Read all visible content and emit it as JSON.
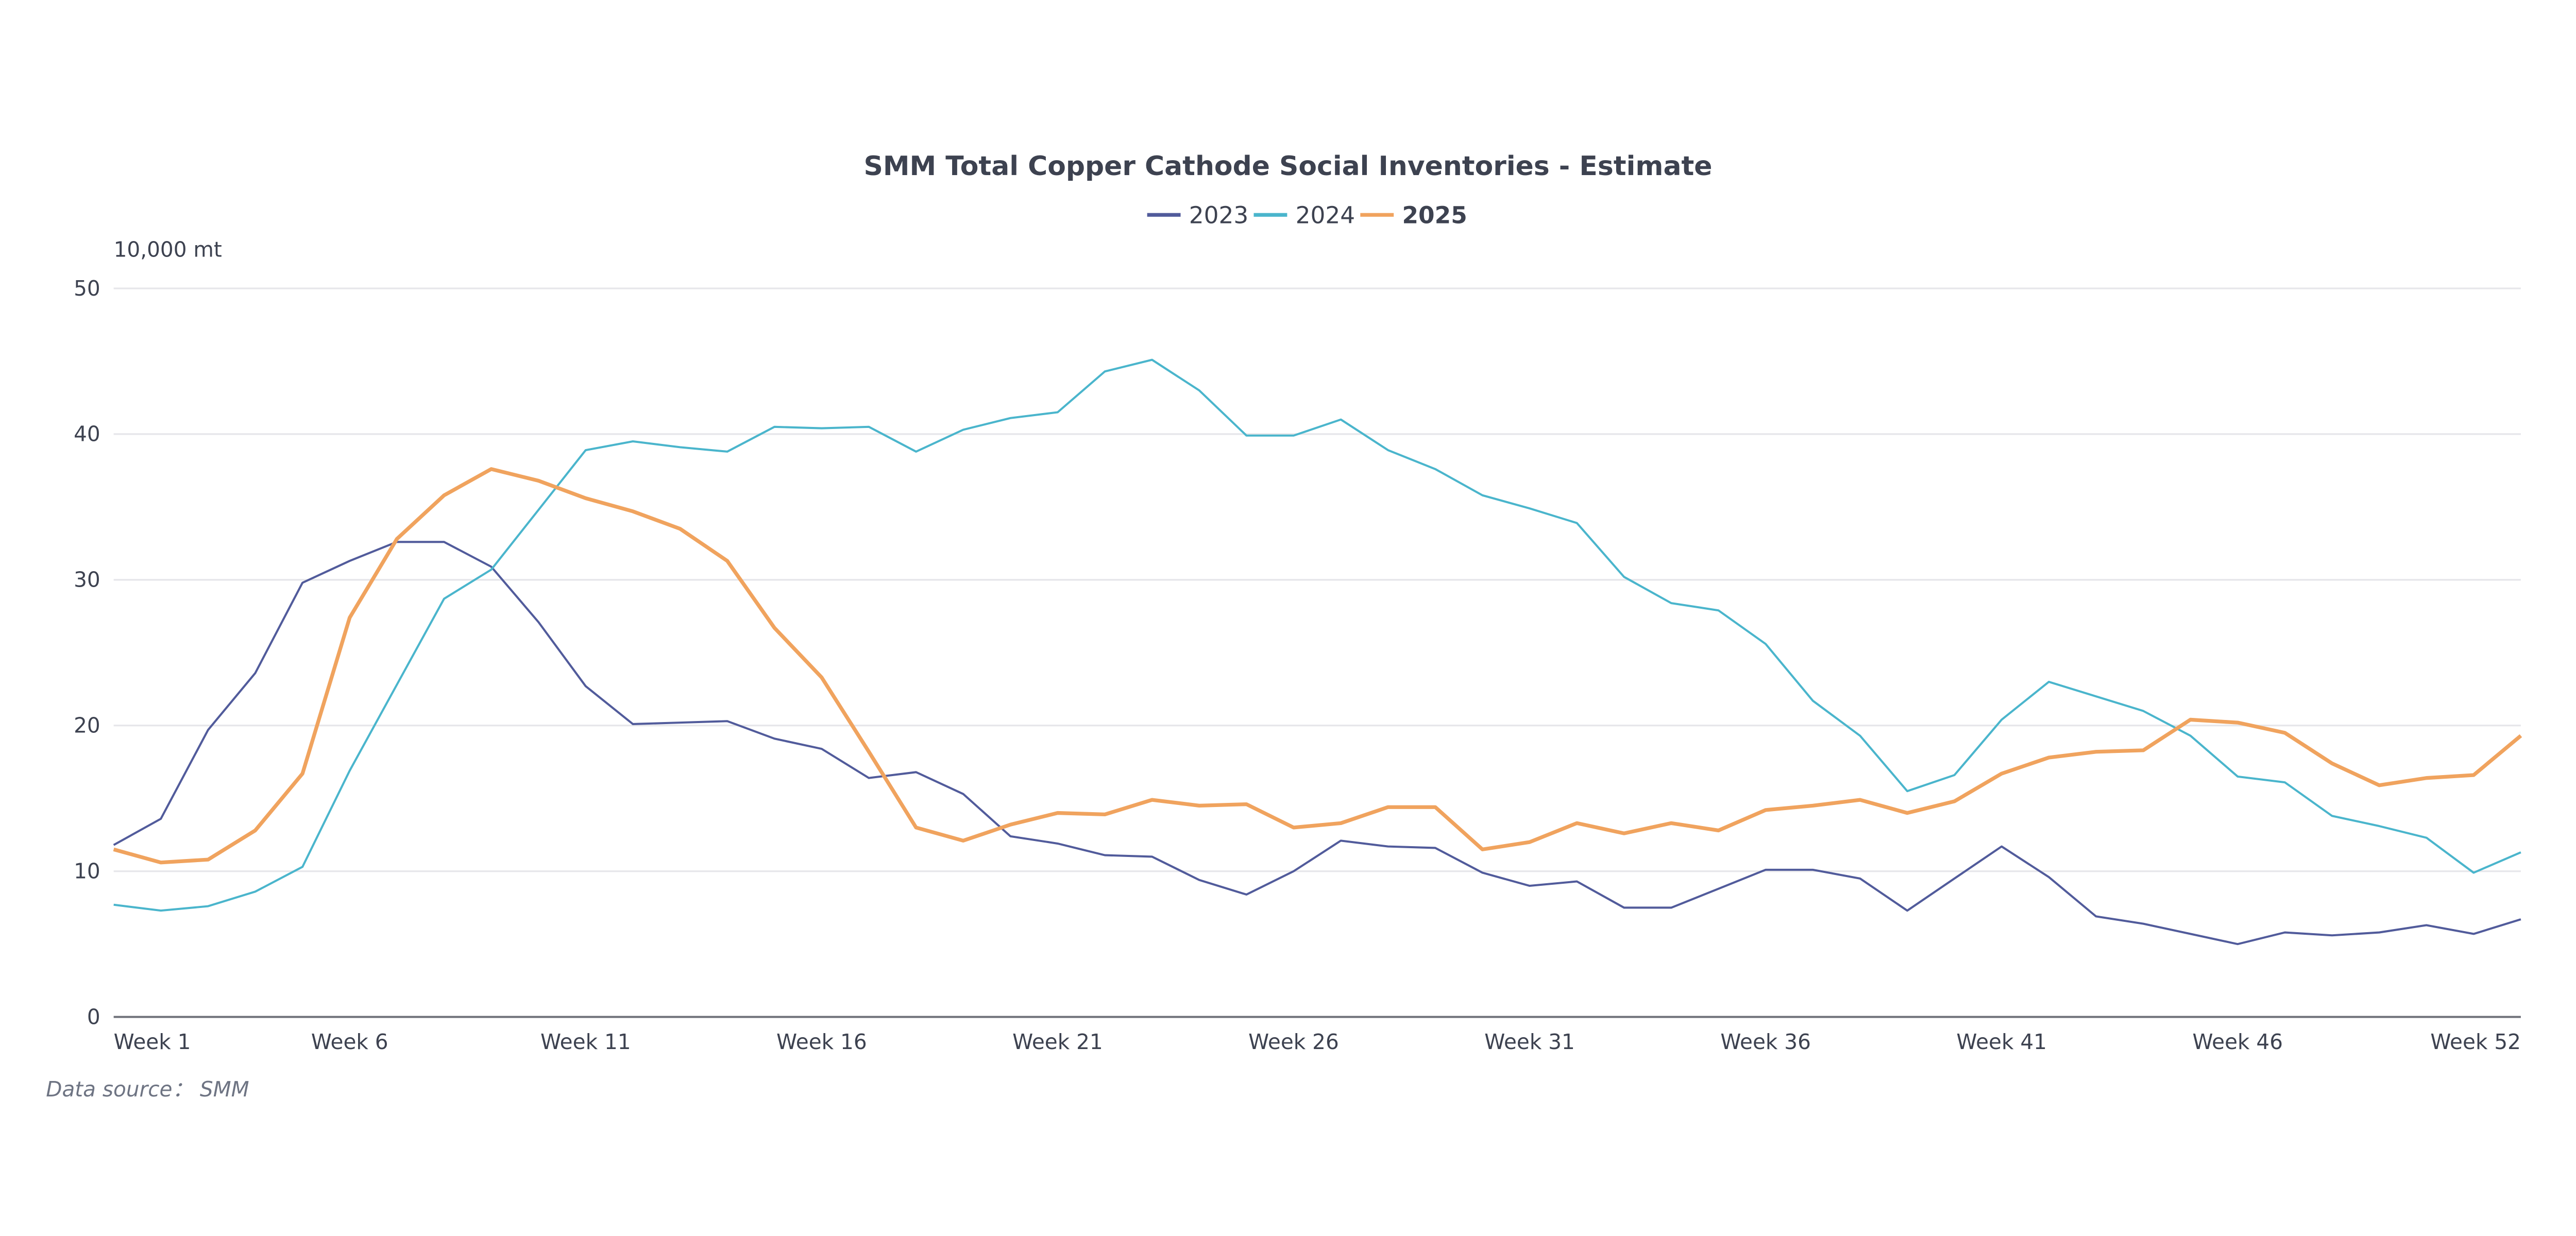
{
  "chart_data": {
    "type": "line",
    "title": "SMM Total Copper Cathode Social Inventories - Estimate",
    "ylabel": "10,000 mt",
    "xlabel": "",
    "ylim": [
      0,
      50
    ],
    "yticks": [
      0,
      10,
      20,
      30,
      40,
      50
    ],
    "grid": true,
    "legend_position": "top-center",
    "categories": [
      "Week 1",
      "Week 2",
      "Week 3",
      "Week 4",
      "Week 5",
      "Week 6",
      "Week 7",
      "Week 8",
      "Week 9",
      "Week 10",
      "Week 11",
      "Week 12",
      "Week 13",
      "Week 14",
      "Week 15",
      "Week 16",
      "Week 17",
      "Week 18",
      "Week 19",
      "Week 20",
      "Week 21",
      "Week 22",
      "Week 23",
      "Week 24",
      "Week 25",
      "Week 26",
      "Week 27",
      "Week 28",
      "Week 29",
      "Week 30",
      "Week 31",
      "Week 32",
      "Week 33",
      "Week 34",
      "Week 35",
      "Week 36",
      "Week 37",
      "Week 38",
      "Week 39",
      "Week 40",
      "Week 41",
      "Week 42",
      "Week 43",
      "Week 44",
      "Week 45",
      "Week 46",
      "Week 47",
      "Week 48",
      "Week 49",
      "Week 50",
      "Week 51",
      "Week 52"
    ],
    "xtick_labels": [
      "Week 1",
      "Week 6",
      "Week 11",
      "Week 16",
      "Week 21",
      "Week 26",
      "Week 31",
      "Week 36",
      "Week 41",
      "Week 46",
      "Week 52"
    ],
    "series": [
      {
        "name": "2023",
        "color": "#515b9b",
        "values": [
          11.8,
          13.6,
          19.7,
          23.6,
          29.8,
          31.3,
          32.6,
          32.6,
          30.9,
          27.1,
          22.7,
          20.1,
          20.2,
          20.3,
          19.1,
          18.4,
          16.4,
          16.8,
          15.3,
          12.4,
          11.9,
          11.1,
          11.0,
          9.4,
          8.4,
          10.0,
          12.1,
          11.7,
          11.6,
          9.9,
          9.0,
          9.3,
          7.5,
          7.5,
          8.8,
          10.1,
          10.1,
          9.5,
          7.3,
          9.5,
          11.7,
          9.6,
          6.9,
          6.4,
          5.7,
          5.0,
          5.8,
          5.6,
          5.8,
          6.3,
          5.7,
          6.7
        ]
      },
      {
        "name": "2024",
        "color": "#4ab5cc",
        "values": [
          7.7,
          7.3,
          7.6,
          8.6,
          10.3,
          16.9,
          22.8,
          28.7,
          30.7,
          34.8,
          38.9,
          39.5,
          39.1,
          38.8,
          40.5,
          40.4,
          40.5,
          38.8,
          40.3,
          41.1,
          41.5,
          44.3,
          45.1,
          43.0,
          39.9,
          39.9,
          41.0,
          38.9,
          37.6,
          35.8,
          34.9,
          33.9,
          30.2,
          28.4,
          27.9,
          25.6,
          21.7,
          19.3,
          15.5,
          16.6,
          20.4,
          23.0,
          22.0,
          21.0,
          19.3,
          16.5,
          16.1,
          13.8,
          13.1,
          12.3,
          9.9,
          11.3
        ]
      },
      {
        "name": "2025",
        "color": "#f0a35e",
        "values": [
          11.5,
          10.6,
          10.8,
          12.8,
          16.7,
          27.4,
          32.8,
          35.8,
          37.6,
          36.8,
          35.6,
          34.7,
          33.5,
          31.3,
          26.7,
          23.3,
          18.2,
          13.0,
          12.1,
          13.2,
          14.0,
          13.9,
          14.9,
          14.5,
          14.6,
          13.0,
          13.3,
          14.4,
          14.4,
          11.5,
          12.0,
          13.3,
          12.6,
          13.3,
          12.8,
          14.2,
          14.5,
          14.9,
          14.0,
          14.8,
          16.7,
          17.8,
          18.2,
          18.3,
          20.4,
          20.2,
          19.5,
          17.4,
          15.9,
          16.4,
          16.6,
          19.3
        ]
      }
    ],
    "source": "Data source： SMM"
  }
}
